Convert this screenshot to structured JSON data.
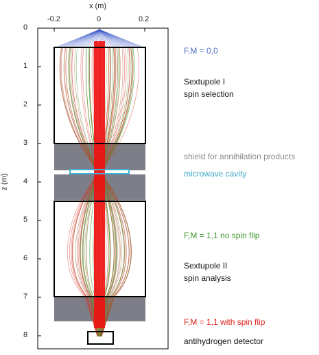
{
  "diagram": {
    "x_axis": {
      "label": "x (m)",
      "ticks": [
        {
          "value": -0.2,
          "label": "-0.2"
        },
        {
          "value": 0,
          "label": "0"
        },
        {
          "value": 0.2,
          "label": "0.2"
        }
      ]
    },
    "z_axis": {
      "label": "z (m)",
      "ticks": [
        "0",
        "1",
        "2",
        "3",
        "4",
        "5",
        "6",
        "7",
        "8"
      ]
    },
    "annotations": {
      "fm00": {
        "text": "F,M = 0,0",
        "color": "#4a6fc2"
      },
      "sextupole1": {
        "line1": "Sextupole I",
        "line2": "spin selection",
        "color": "#111111"
      },
      "shield": {
        "text": "shield for annihilation products",
        "color": "#8a8a90"
      },
      "cavity": {
        "text": "microwave cavity",
        "color": "#3aa8c8"
      },
      "fm11_noflip": {
        "text": "F,M = 1,1 no spin flip",
        "color": "#3f9a2c"
      },
      "sextupole2": {
        "line1": "Sextupole II",
        "line2": "spin analysis",
        "color": "#111111"
      },
      "fm11_flip": {
        "text": "F,M = 1,1 with spin flip",
        "color": "#e0201a"
      },
      "detector": {
        "text": "antihydrogen detector",
        "color": "#111111"
      }
    },
    "colors": {
      "shield": "#7e7e88",
      "cavity": "#3fb0d6",
      "beam_core": "#f01010",
      "trajectory_blue": "#3b58c8",
      "trajectory_red": "#d83020",
      "trajectory_green": "#48a030",
      "trajectory_brown": "#a05a30"
    }
  }
}
